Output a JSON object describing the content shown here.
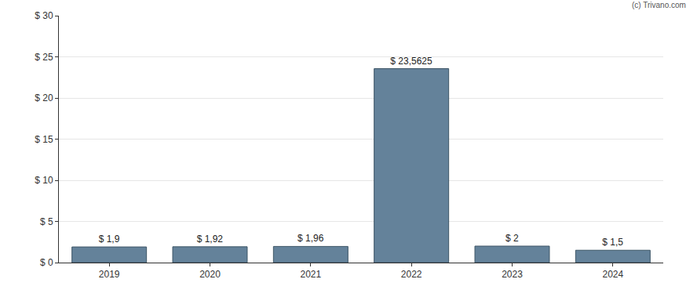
{
  "chart_data": {
    "type": "bar",
    "categories": [
      "2019",
      "2020",
      "2021",
      "2022",
      "2023",
      "2024"
    ],
    "values": [
      1.9,
      1.92,
      1.96,
      23.5625,
      2,
      1.5
    ],
    "value_labels": [
      "$ 1,9",
      "$ 1,92",
      "$ 1,96",
      "$ 23,5625",
      "$ 2",
      "$ 1,5"
    ],
    "data_labels": true,
    "color": "#64829a",
    "ylim": [
      0,
      30
    ],
    "yticks": [
      {
        "value": 0,
        "label": "$ 0"
      },
      {
        "value": 5,
        "label": "$ 5"
      },
      {
        "value": 10,
        "label": "$ 10"
      },
      {
        "value": 15,
        "label": "$ 15"
      },
      {
        "value": 20,
        "label": "$ 20"
      },
      {
        "value": 25,
        "label": "$ 25"
      },
      {
        "value": 30,
        "label": "$ 30"
      }
    ],
    "grid": true,
    "annotations": [
      "(c) Trivano.com"
    ]
  }
}
